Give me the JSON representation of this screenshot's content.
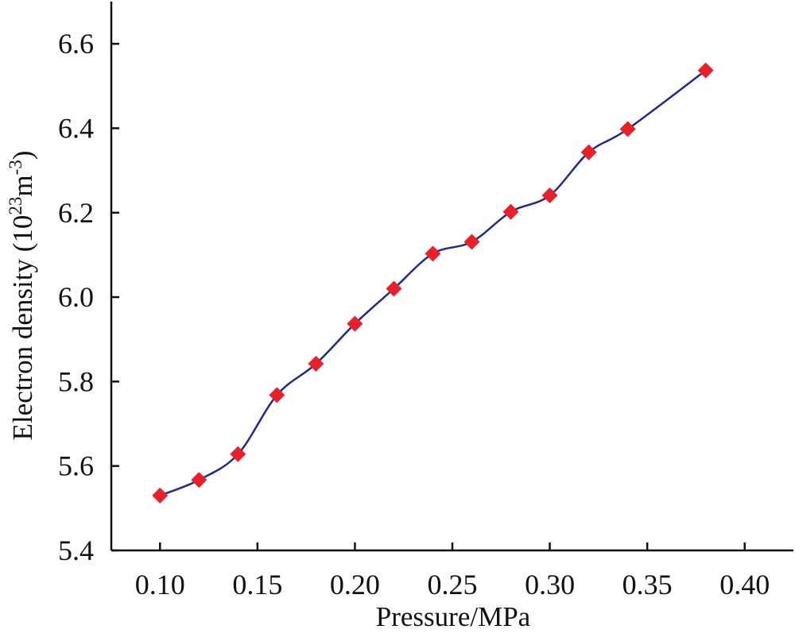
{
  "chart_data": {
    "type": "line",
    "title": "",
    "xlabel": "Pressure/MPa",
    "ylabel": {
      "prefix": "Electron density (10",
      "exp1": "23",
      "mid": "m",
      "exp2": "-3",
      "suffix": ")"
    },
    "xlim": [
      0.075,
      0.425
    ],
    "ylim": [
      5.4,
      6.7
    ],
    "xticks": [
      0.1,
      0.15,
      0.2,
      0.25,
      0.3,
      0.35,
      0.4
    ],
    "xtick_labels": [
      "0.10",
      "0.15",
      "0.20",
      "0.25",
      "0.30",
      "0.35",
      "0.40"
    ],
    "yticks": [
      5.4,
      5.6,
      5.8,
      6.0,
      6.2,
      6.4,
      6.6
    ],
    "ytick_labels": [
      "5.4",
      "5.6",
      "5.8",
      "6.0",
      "6.2",
      "6.4",
      "6.6"
    ],
    "grid": false,
    "series": [
      {
        "x": [
          0.1,
          0.12,
          0.14,
          0.16,
          0.18,
          0.2,
          0.22,
          0.24,
          0.26,
          0.28,
          0.3,
          0.32,
          0.34,
          0.38
        ],
        "y": [
          5.53,
          5.567,
          5.628,
          5.768,
          5.842,
          5.937,
          6.02,
          6.103,
          6.131,
          6.202,
          6.241,
          6.343,
          6.398,
          6.537
        ],
        "line_color": "#1f2a8c",
        "marker_color": "#e8202a",
        "marker": "diamond"
      }
    ]
  }
}
